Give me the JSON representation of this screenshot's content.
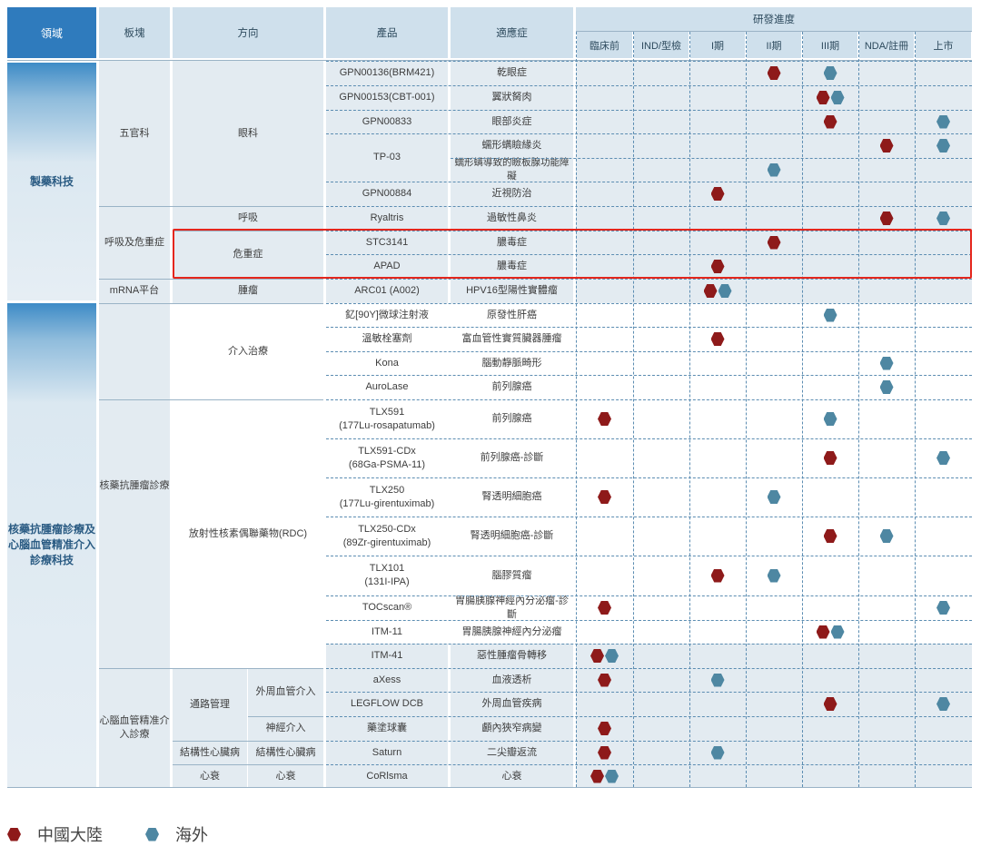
{
  "colors": {
    "china": "#8e1a1a",
    "overseas": "#4e87a2",
    "highlight": "#e5261c",
    "header": "#2f7bbd"
  },
  "header": {
    "domain": "領域",
    "segment": "板塊",
    "direction": "方向",
    "product": "產品",
    "indication": "適應症",
    "progress": "研發進度",
    "stages": [
      "臨床前",
      "IND/型檢",
      "I期",
      "II期",
      "III期",
      "NDA/註冊",
      "上市"
    ]
  },
  "domains": [
    "製藥科技",
    "核藥抗腫瘤診療及心腦血管精准介入診療科技"
  ],
  "segments": [
    "五官科",
    "呼吸及危重症",
    "mRNA平台",
    "核藥抗腫瘤診療",
    "心腦血管精准介入診療"
  ],
  "directions": [
    "眼科",
    "呼吸",
    "危重症",
    "腫瘤",
    "介入治療",
    "放射性核素偶聯藥物(RDC)",
    "通路管理",
    "結構性心臟病",
    "心衰"
  ],
  "subdirections": [
    "外周血管介入",
    "神經介入",
    "結構性心臟病",
    "心衰"
  ],
  "products": [
    "GPN00136(BRM421)",
    "GPN00153(CBT-001)",
    "GPN00833",
    "TP-03",
    "GPN00884",
    "Ryaltris",
    "STC3141",
    "APAD",
    "ARC01 (A002)",
    "釔[90Y]微球注射液",
    "溫敏栓塞劑",
    "Kona",
    "AuroLase",
    "TLX591\n(177Lu-rosapatumab)",
    "TLX591-CDx\n(68Ga-PSMA-11)",
    "TLX250\n(177Lu-girentuximab)",
    "TLX250-CDx\n(89Zr-girentuximab)",
    "TLX101\n(131I-IPA)",
    "TOCscan®",
    "ITM-11",
    "ITM-41",
    "aXess",
    "LEGFLOW DCB",
    "藥塗球囊",
    "Saturn",
    "CoRlsma"
  ],
  "indications": [
    "乾眼症",
    "翼狀胬肉",
    "眼部炎症",
    "蠕形螨瞼緣炎",
    "蠕形螨導致的瞼板腺功能障礙",
    "近視防治",
    "過敏性鼻炎",
    "膿毒症",
    "膿毒症",
    "HPV16型陽性實體瘤",
    "原發性肝癌",
    "富血管性實質臟器腫瘤",
    "腦動靜脈畸形",
    "前列腺癌",
    "前列腺癌",
    "前列腺癌-診斷",
    "腎透明細胞癌",
    "腎透明細胞癌-診斷",
    "腦膠質瘤",
    "胃腸胰腺神經內分泌瘤-診斷",
    "胃腸胰腺神經內分泌瘤",
    "惡性腫瘤骨轉移",
    "血液透析",
    "外周血管疾病",
    "顱內狹窄病變",
    "二尖瓣返流",
    "心衰"
  ],
  "legend": {
    "china": "中國大陸",
    "overseas": "海外"
  }
}
